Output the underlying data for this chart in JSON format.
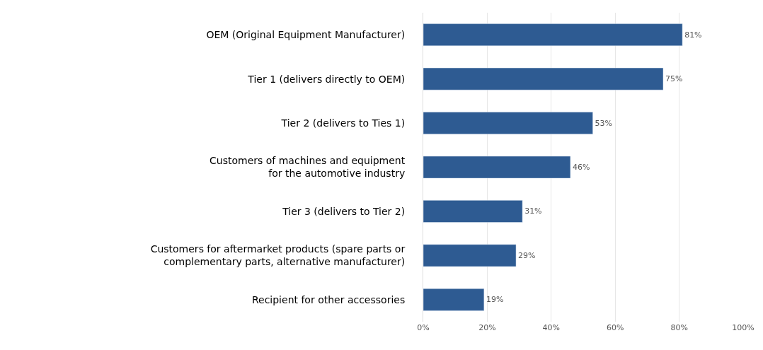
{
  "chart_data": {
    "type": "bar",
    "orientation": "horizontal",
    "categories": [
      "OEM (Original Equipment Manufacturer)",
      "Tier 1 (delivers directly to OEM)",
      "Tier 2 (delivers to Ties 1)",
      "Customers of machines and equipment\nfor the automotive industry",
      "Tier 3 (delivers to Tier 2)",
      "Customers for aftermarket products (spare parts or\ncomplementary parts, alternative manufacturer)",
      "Recipient for other accessories"
    ],
    "values": [
      81,
      75,
      53,
      46,
      31,
      29,
      19
    ],
    "value_labels": [
      "81%",
      "75%",
      "53%",
      "46%",
      "31%",
      "29%",
      "19%"
    ],
    "color": "#2e5b92",
    "xlim": [
      0,
      100
    ],
    "xticks": [
      {
        "value": 0,
        "label": "0%"
      },
      {
        "value": 20,
        "label": "20%"
      },
      {
        "value": 40,
        "label": "40%"
      },
      {
        "value": 60,
        "label": "60%"
      },
      {
        "value": 80,
        "label": "80%"
      },
      {
        "value": 100,
        "label": "100%"
      }
    ],
    "grid": "x",
    "legend": false
  }
}
